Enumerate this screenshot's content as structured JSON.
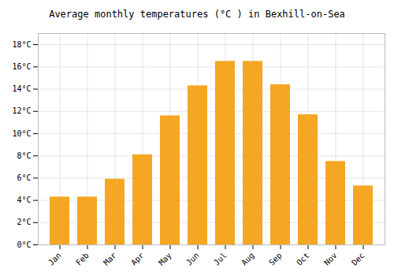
{
  "chart_data": {
    "type": "bar",
    "title": "Average monthly temperatures (°C ) in Bexhill-on-Sea",
    "categories": [
      "Jan",
      "Feb",
      "Mar",
      "Apr",
      "May",
      "Jun",
      "Jul",
      "Aug",
      "Sep",
      "Oct",
      "Nov",
      "Dec"
    ],
    "values": [
      4.3,
      4.3,
      5.9,
      8.1,
      11.6,
      14.3,
      16.5,
      16.5,
      14.4,
      11.7,
      7.5,
      5.3
    ],
    "color": "#F5A623",
    "ylim": [
      0,
      19
    ],
    "yticks": [
      {
        "value": 0,
        "label": "0°C"
      },
      {
        "value": 2,
        "label": "2°C"
      },
      {
        "value": 4,
        "label": "4°C"
      },
      {
        "value": 6,
        "label": "6°C"
      },
      {
        "value": 8,
        "label": "8°C"
      },
      {
        "value": 10,
        "label": "10°C"
      },
      {
        "value": 12,
        "label": "12°C"
      },
      {
        "value": 14,
        "label": "14°C"
      },
      {
        "value": 16,
        "label": "16°C"
      },
      {
        "value": 18,
        "label": "18°C"
      }
    ],
    "grid": true
  }
}
